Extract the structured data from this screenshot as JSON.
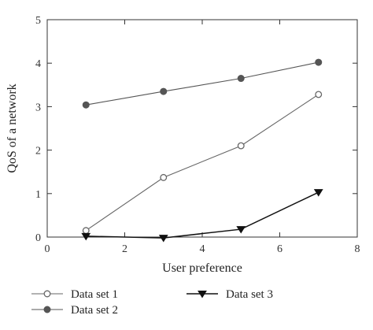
{
  "chart_data": {
    "type": "line",
    "xlabel": "User preference",
    "ylabel": "QoS of a network",
    "xlim": [
      0,
      8
    ],
    "ylim": [
      0,
      5
    ],
    "xticks": [
      0,
      2,
      4,
      6,
      8
    ],
    "yticks": [
      0,
      1,
      2,
      3,
      4,
      5
    ],
    "grid": false,
    "legend_position": "bottom",
    "series": [
      {
        "name": "Data set 1",
        "marker": "open-circle",
        "color": "#666666",
        "x": [
          1,
          3,
          5,
          7
        ],
        "y": [
          0.15,
          1.37,
          2.1,
          3.28
        ]
      },
      {
        "name": "Data set 2",
        "marker": "filled-circle",
        "color": "#555555",
        "x": [
          1,
          3,
          5,
          7
        ],
        "y": [
          3.04,
          3.35,
          3.65,
          4.02
        ]
      },
      {
        "name": "Data set 3",
        "marker": "filled-triangle-down",
        "color": "#111111",
        "x": [
          1,
          3,
          5,
          7
        ],
        "y": [
          0.02,
          -0.02,
          0.18,
          1.03
        ]
      }
    ]
  }
}
